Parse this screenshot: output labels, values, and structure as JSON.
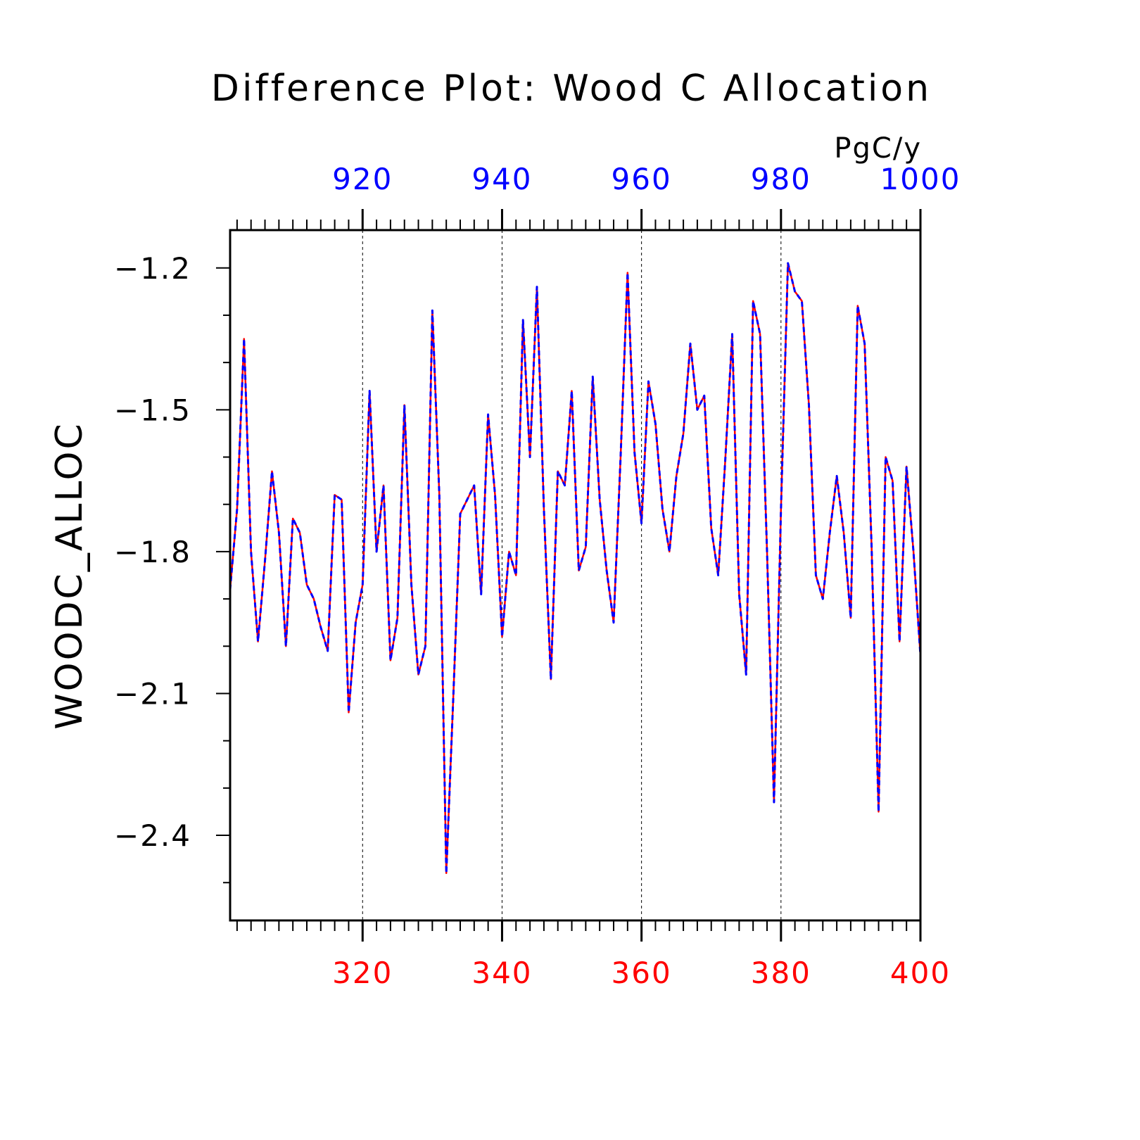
{
  "chart_data": {
    "type": "line",
    "title": "Difference Plot: Wood C Allocation",
    "units": "PgC/y",
    "ylabel": "WOODC_ALLOC",
    "xlabel": "",
    "ylim": [
      -2.58,
      -1.12
    ],
    "yticks": [
      -1.2,
      -1.5,
      -1.8,
      -2.1,
      -2.4
    ],
    "ytick_labels": [
      "−1.2",
      "−1.5",
      "−1.8",
      "−2.1",
      "−2.4"
    ],
    "x_bottom": {
      "range": [
        301,
        400
      ],
      "ticks": [
        320,
        340,
        360,
        380,
        400
      ],
      "tick_labels": [
        "320",
        "340",
        "360",
        "380",
        "400"
      ],
      "color": "#ff0000"
    },
    "x_top": {
      "range": [
        901,
        1000
      ],
      "ticks": [
        920,
        940,
        960,
        980,
        1000
      ],
      "tick_labels": [
        "920",
        "940",
        "960",
        "980",
        "1000"
      ],
      "color": "#0000ff"
    },
    "grid": "vertical dashed at major ticks",
    "series": [
      {
        "color": "#ff0000",
        "style": "solid",
        "axis": "bottom",
        "x_start": 301,
        "values": [
          -1.88,
          -1.71,
          -1.35,
          -1.8,
          -1.99,
          -1.82,
          -1.63,
          -1.76,
          -2.0,
          -1.73,
          -1.76,
          -1.87,
          -1.9,
          -1.96,
          -2.01,
          -1.68,
          -1.69,
          -2.14,
          -1.95,
          -1.87,
          -1.46,
          -1.8,
          -1.66,
          -2.03,
          -1.94,
          -1.49,
          -1.87,
          -2.06,
          -2.0,
          -1.29,
          -1.68,
          -2.48,
          -2.11,
          -1.72,
          -1.69,
          -1.66,
          -1.89,
          -1.51,
          -1.68,
          -1.98,
          -1.8,
          -1.85,
          -1.31,
          -1.6,
          -1.24,
          -1.71,
          -2.07,
          -1.63,
          -1.66,
          -1.46,
          -1.84,
          -1.79,
          -1.43,
          -1.69,
          -1.84,
          -1.95,
          -1.6,
          -1.21,
          -1.59,
          -1.74,
          -1.44,
          -1.53,
          -1.71,
          -1.8,
          -1.64,
          -1.55,
          -1.36,
          -1.5,
          -1.47,
          -1.75,
          -1.85,
          -1.61,
          -1.34,
          -1.89,
          -2.06,
          -1.27,
          -1.34,
          -1.8,
          -2.33,
          -1.71,
          -1.19,
          -1.25,
          -1.27,
          -1.49,
          -1.85,
          -1.9,
          -1.76,
          -1.64,
          -1.76,
          -1.94,
          -1.28,
          -1.36,
          -1.79,
          -2.35,
          -1.6,
          -1.65,
          -1.99,
          -1.62,
          -1.8,
          -2.02
        ]
      },
      {
        "color": "#0000ff",
        "style": "dashed",
        "axis": "top",
        "x_start": 901,
        "values": [
          -1.88,
          -1.71,
          -1.35,
          -1.8,
          -1.99,
          -1.82,
          -1.63,
          -1.76,
          -2.0,
          -1.73,
          -1.76,
          -1.87,
          -1.9,
          -1.96,
          -2.01,
          -1.68,
          -1.69,
          -2.14,
          -1.95,
          -1.87,
          -1.46,
          -1.8,
          -1.66,
          -2.03,
          -1.94,
          -1.49,
          -1.87,
          -2.06,
          -2.0,
          -1.29,
          -1.68,
          -2.48,
          -2.11,
          -1.72,
          -1.69,
          -1.66,
          -1.89,
          -1.51,
          -1.68,
          -1.98,
          -1.8,
          -1.85,
          -1.31,
          -1.6,
          -1.24,
          -1.71,
          -2.07,
          -1.63,
          -1.66,
          -1.46,
          -1.84,
          -1.79,
          -1.43,
          -1.69,
          -1.84,
          -1.95,
          -1.6,
          -1.21,
          -1.59,
          -1.74,
          -1.44,
          -1.53,
          -1.71,
          -1.8,
          -1.64,
          -1.55,
          -1.36,
          -1.5,
          -1.47,
          -1.75,
          -1.85,
          -1.61,
          -1.34,
          -1.89,
          -2.06,
          -1.27,
          -1.34,
          -1.8,
          -2.33,
          -1.71,
          -1.19,
          -1.25,
          -1.27,
          -1.49,
          -1.85,
          -1.9,
          -1.76,
          -1.64,
          -1.76,
          -1.94,
          -1.28,
          -1.36,
          -1.79,
          -2.35,
          -1.6,
          -1.65,
          -1.99,
          -1.62,
          -1.8,
          -2.02
        ]
      }
    ]
  }
}
